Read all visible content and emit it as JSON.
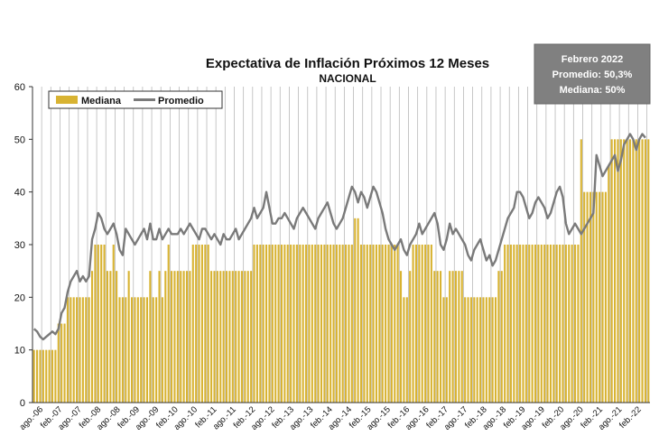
{
  "chart_data": {
    "type": "bar",
    "title": "Expectativa de Inflación Próximos 12 Meses",
    "subtitle": "NACIONAL",
    "ylim": [
      0,
      60
    ],
    "yticks": [
      0,
      10,
      20,
      30,
      40,
      50,
      60
    ],
    "grid": "vertical",
    "legend_placement": "top-left",
    "legend": [
      "Mediana",
      "Promedio"
    ],
    "colors": {
      "mediana": "#d8b332",
      "promedio": "#7a7a7a",
      "box_fill": "#808080"
    },
    "x_tick_labels": [
      "ago.-06",
      "feb.-07",
      "ago.-07",
      "feb.-08",
      "ago.-08",
      "feb.-09",
      "ago.-09",
      "feb.-10",
      "ago.-10",
      "feb.-11",
      "ago.-11",
      "feb.-12",
      "ago.-12",
      "feb.-13",
      "ago.-13",
      "feb.-14",
      "ago.-14",
      "feb.-15",
      "ago.-15",
      "feb.-16",
      "ago.-16",
      "feb.-17",
      "ago.-17",
      "feb.-18",
      "ago.-18",
      "feb.-19",
      "ago.-19",
      "feb.-20",
      "ago.-20",
      "feb.-21",
      "ago.-21",
      "feb.-22"
    ],
    "annotation_box": [
      "Febrero 2022",
      "Promedio: 50,3%",
      "Mediana: 50%"
    ],
    "series": [
      {
        "name": "Mediana",
        "type": "bar",
        "values": [
          10,
          10,
          10,
          10,
          10,
          10,
          10,
          10,
          15,
          15,
          15,
          20,
          20,
          20,
          20,
          20,
          20,
          20,
          20,
          25,
          30,
          30,
          30,
          30,
          25,
          25,
          30,
          25,
          20,
          20,
          20,
          25,
          20,
          20,
          20,
          20,
          20,
          20,
          25,
          20,
          20,
          25,
          20,
          25,
          30,
          25,
          25,
          25,
          25,
          25,
          25,
          25,
          30,
          30,
          30,
          30,
          30,
          30,
          25,
          25,
          25,
          25,
          25,
          25,
          25,
          25,
          25,
          25,
          25,
          25,
          25,
          25,
          30,
          30,
          30,
          30,
          30,
          30,
          30,
          30,
          30,
          30,
          30,
          30,
          30,
          30,
          30,
          30,
          30,
          30,
          30,
          30,
          30,
          30,
          30,
          30,
          30,
          30,
          30,
          30,
          30,
          30,
          30,
          30,
          30,
          35,
          35,
          30,
          30,
          30,
          30,
          30,
          30,
          30,
          30,
          30,
          30,
          30,
          30,
          30,
          25,
          20,
          20,
          25,
          30,
          30,
          30,
          30,
          30,
          30,
          30,
          25,
          25,
          25,
          20,
          20,
          25,
          25,
          25,
          25,
          25,
          20,
          20,
          20,
          20,
          20,
          20,
          20,
          20,
          20,
          20,
          20,
          25,
          25,
          30,
          30,
          30,
          30,
          30,
          30,
          30,
          30,
          30,
          30,
          30,
          30,
          30,
          30,
          30,
          30,
          30,
          30,
          30,
          30,
          30,
          30,
          30,
          30,
          30,
          50,
          40,
          40,
          40,
          40,
          40,
          40,
          40,
          40,
          45,
          50,
          50,
          50,
          50,
          50,
          50,
          50,
          50,
          50,
          50,
          50,
          50,
          50
        ]
      },
      {
        "name": "Promedio",
        "type": "line",
        "values": [
          14,
          13.5,
          12.5,
          12,
          12.5,
          13,
          13.5,
          13,
          14,
          17,
          18,
          21,
          23,
          24,
          25,
          23,
          24,
          23,
          24,
          31,
          33,
          36,
          35,
          33,
          32,
          33,
          34,
          32,
          29,
          28,
          33,
          32,
          31,
          30,
          31,
          32,
          33,
          31,
          34,
          31,
          31,
          33,
          31,
          32,
          33,
          32,
          32,
          32,
          33,
          32,
          33,
          34,
          33,
          32,
          31,
          33,
          33,
          32,
          31,
          32,
          31,
          30,
          32,
          31,
          31,
          32,
          33,
          31,
          32,
          33,
          34,
          35,
          37,
          35,
          36,
          37,
          40,
          37,
          34,
          34,
          35,
          35,
          36,
          35,
          34,
          33,
          35,
          36,
          37,
          36,
          35,
          34,
          33,
          35,
          36,
          37,
          38,
          36,
          34,
          33,
          34,
          35,
          37,
          39,
          41,
          40,
          38,
          40,
          39,
          37,
          39,
          41,
          40,
          38,
          36,
          33,
          31,
          30,
          29,
          30,
          31,
          29,
          28,
          30,
          31,
          32,
          34,
          32,
          33,
          34,
          35,
          36,
          34,
          30,
          29,
          31,
          34,
          32,
          33,
          32,
          31,
          30,
          28,
          27,
          29,
          30,
          31,
          29,
          27,
          28,
          26,
          27,
          29,
          31,
          33,
          35,
          36,
          37,
          40,
          40,
          39,
          37,
          35,
          36,
          38,
          39,
          38,
          37,
          35,
          36,
          38,
          40,
          41,
          39,
          34,
          32,
          33,
          34,
          33,
          32,
          33,
          34,
          35,
          36,
          47,
          45,
          43,
          44,
          45,
          46,
          47,
          44,
          46,
          49,
          50,
          51,
          50,
          48,
          50,
          51,
          50.3
        ]
      }
    ]
  }
}
